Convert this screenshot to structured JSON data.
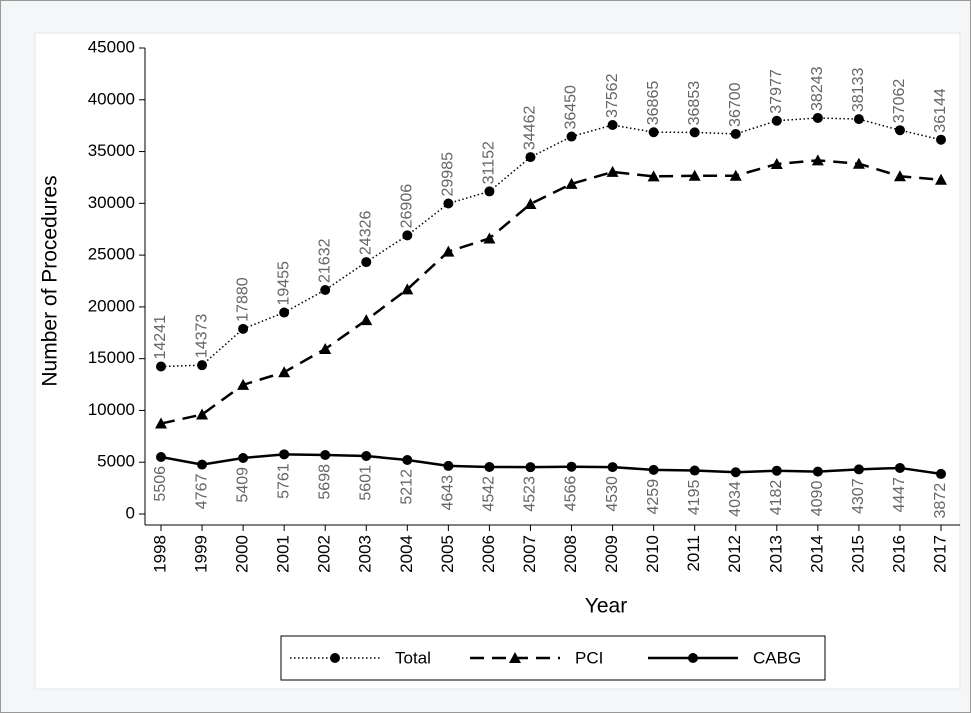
{
  "chart_data": {
    "type": "line",
    "x_label": "Year",
    "y_label": "Number of Procedures",
    "categories": [
      "1998",
      "1999",
      "2000",
      "2001",
      "2002",
      "2003",
      "2004",
      "2005",
      "2006",
      "2007",
      "2008",
      "2009",
      "2010",
      "2011",
      "2012",
      "2013",
      "2014",
      "2015",
      "2016",
      "2017"
    ],
    "ylim": [
      0,
      45000
    ],
    "yticks": [
      0,
      5000,
      10000,
      15000,
      20000,
      25000,
      30000,
      35000,
      40000,
      45000
    ],
    "series": [
      {
        "name": "Total",
        "color": "#000000",
        "line_style": "dotted",
        "marker": "circle",
        "label_position": "above",
        "values": [
          14241,
          14373,
          17880,
          19455,
          21632,
          24326,
          26906,
          29985,
          31152,
          34462,
          36450,
          37562,
          36865,
          36853,
          36700,
          37977,
          38243,
          38133,
          37062,
          36144
        ]
      },
      {
        "name": "PCI",
        "color": "#000000",
        "line_style": "dashed",
        "marker": "triangle",
        "values": [
          8735,
          9606,
          12471,
          13694,
          15934,
          18725,
          21694,
          25342,
          26610,
          29939,
          31884,
          33032,
          32606,
          32658,
          32666,
          33795,
          34153,
          33826,
          32615,
          32272
        ]
      },
      {
        "name": "CABG",
        "color": "#000000",
        "line_style": "solid",
        "marker": "circle",
        "label_position": "below",
        "values": [
          5506,
          4767,
          5409,
          5761,
          5698,
          5601,
          5212,
          4643,
          4542,
          4523,
          4566,
          4530,
          4259,
          4195,
          4034,
          4182,
          4090,
          4307,
          4447,
          3872
        ]
      }
    ],
    "legend": "bottom"
  }
}
